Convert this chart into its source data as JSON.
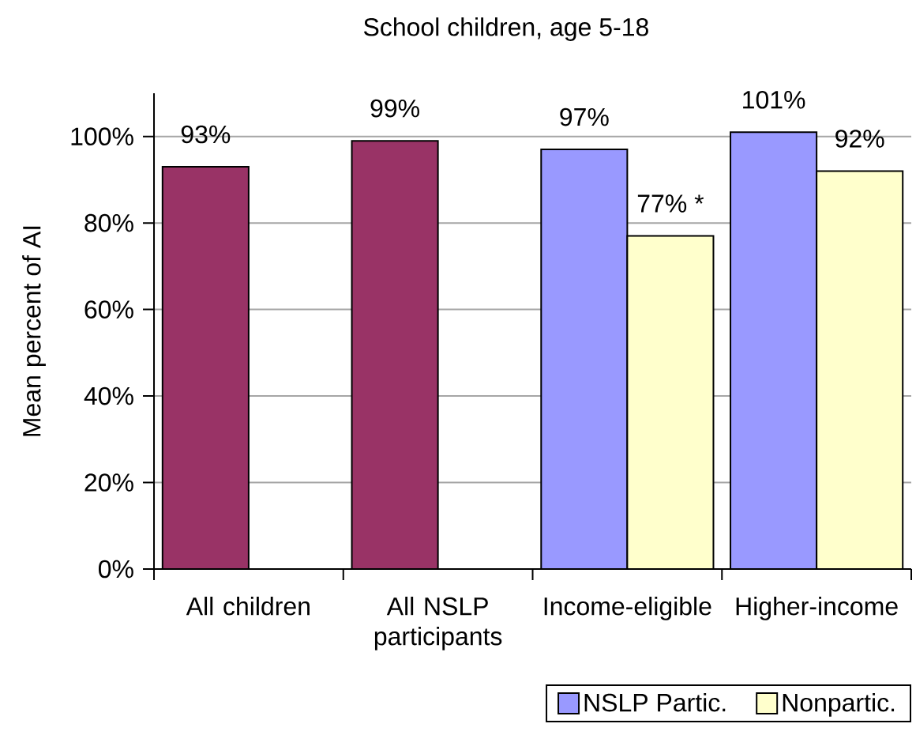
{
  "chart_data": {
    "type": "bar",
    "title": "School children, age 5-18",
    "ylabel": "Mean percent of AI",
    "categories": [
      "All children",
      "All NSLP participants",
      "Income-eligible",
      "Higher-income"
    ],
    "series": [
      {
        "name": "NSLP Partic.",
        "color": "#9999ff",
        "colors": [
          "#993366",
          "#993366",
          "#9999ff",
          "#9999ff"
        ],
        "values": [
          93,
          99,
          97,
          101
        ],
        "value_labels": [
          "93%",
          "99%",
          "97%",
          "101%"
        ]
      },
      {
        "name": "Nonpartic.",
        "color": "#ffffcc",
        "values": [
          null,
          null,
          77,
          92
        ],
        "value_labels": [
          null,
          null,
          "77% *",
          "92%"
        ]
      }
    ],
    "ylim": [
      0,
      110
    ],
    "yticks": [
      {
        "value": 0,
        "label": "0%"
      },
      {
        "value": 20,
        "label": "20%"
      },
      {
        "value": 40,
        "label": "40%"
      },
      {
        "value": 60,
        "label": "60%"
      },
      {
        "value": 80,
        "label": "80%"
      },
      {
        "value": 100,
        "label": "100%"
      }
    ],
    "grid": "y",
    "legend": "bottom right"
  }
}
